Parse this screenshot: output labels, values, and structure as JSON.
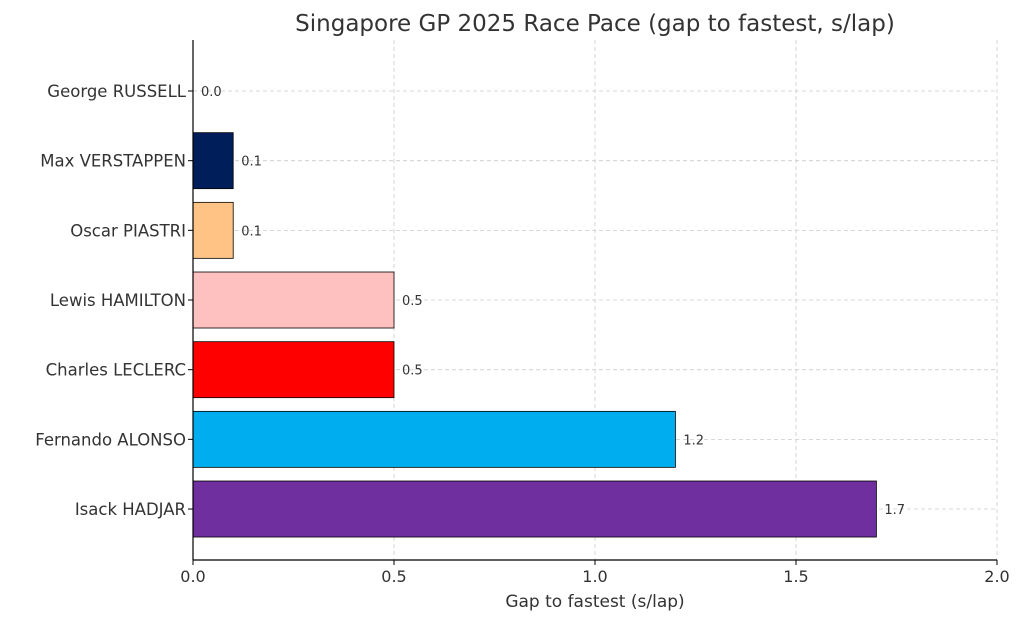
{
  "chart_data": {
    "type": "bar",
    "orientation": "horizontal",
    "title": "Singapore GP 2025 Race Pace (gap to fastest, s/lap)",
    "xlabel": "Gap to fastest (s/lap)",
    "ylabel": "",
    "xlim": [
      0,
      2.0
    ],
    "xticks": [
      "0.0",
      "0.5",
      "1.0",
      "1.5",
      "2.0"
    ],
    "grid": true,
    "categories": [
      "George RUSSELL",
      "Max VERSTAPPEN",
      "Oscar PIASTRI",
      "Lewis HAMILTON",
      "Charles LECLERC",
      "Fernando ALONSO",
      "Isack HADJAR"
    ],
    "values": [
      0.0,
      0.1,
      0.1,
      0.5,
      0.5,
      1.2,
      1.7
    ],
    "labels": [
      "0.0",
      "0.1",
      "0.1",
      "0.5",
      "0.5",
      "1.2",
      "1.7"
    ],
    "colors": [
      "#00d2be",
      "#001e5a",
      "#ffc386",
      "#ffc0c0",
      "#ff0000",
      "#00aeef",
      "#6f2f9e"
    ]
  }
}
